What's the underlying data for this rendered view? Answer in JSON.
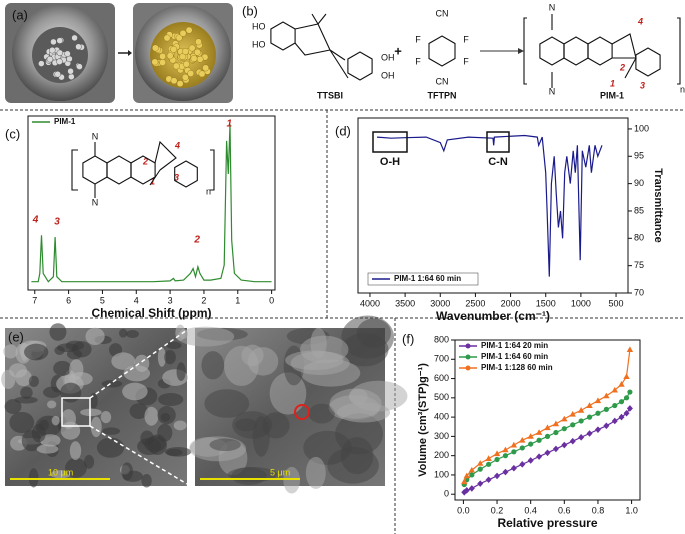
{
  "figure": {
    "panel_labels": [
      "(a)",
      "(b)",
      "(c)",
      "(d)",
      "(e)",
      "(f)"
    ],
    "scheme": {
      "compounds": [
        "TTSBI",
        "TFTPN",
        "PIM-1"
      ],
      "plus": "+",
      "atoms_ttsbi": [
        "HO",
        "HO",
        "OH",
        "OH"
      ],
      "atoms_tftpn": [
        "CN",
        "F",
        "F",
        "F",
        "F",
        "CN"
      ],
      "atoms_pim": [
        "N",
        "N",
        "n"
      ],
      "numbers": [
        "4",
        "2",
        "1",
        "3"
      ]
    },
    "nmr_inset": {
      "atoms": [
        "N",
        "N",
        "n"
      ],
      "numbers": [
        "4",
        "2",
        "3",
        "1"
      ]
    },
    "sem": {
      "scale_bars": [
        "10 μm",
        "5 μm"
      ]
    }
  },
  "chart_data": [
    {
      "type": "line",
      "xlabel": "Chemical Shift (ppm)",
      "xlim": [
        7.2,
        -0.1
      ],
      "xticks": [
        7,
        6,
        5,
        4,
        3,
        2,
        1,
        0
      ],
      "ylim": [
        0,
        1.05
      ],
      "legend": "upper left",
      "peak_labels": [
        "4",
        "3",
        "2",
        "1"
      ],
      "x": [
        7.1,
        6.9,
        6.85,
        6.8,
        6.75,
        6.6,
        6.45,
        6.4,
        6.35,
        6.2,
        5.5,
        4.5,
        3.5,
        3.0,
        2.9,
        2.85,
        2.6,
        2.4,
        2.32,
        2.25,
        2.18,
        2.12,
        2.0,
        1.8,
        1.5,
        1.4,
        1.33,
        1.28,
        1.23,
        1.18,
        1.1,
        0.9,
        0.5,
        0
      ],
      "series": [
        {
          "name": "PIM-1",
          "color": "#2e8b2e",
          "values": [
            0.05,
            0.05,
            0.1,
            0.33,
            0.1,
            0.05,
            0.08,
            0.32,
            0.08,
            0.05,
            0.05,
            0.05,
            0.05,
            0.055,
            0.07,
            0.055,
            0.06,
            0.1,
            0.13,
            0.08,
            0.14,
            0.1,
            0.06,
            0.06,
            0.07,
            0.15,
            0.9,
            0.7,
            1.0,
            0.3,
            0.1,
            0.06,
            0.05,
            0.05
          ]
        }
      ]
    },
    {
      "type": "line",
      "xlabel": "Wavenumber (cm⁻¹)",
      "ylabel": "Transmittance",
      "yaxis_side": "right",
      "xlim": [
        4170,
        330
      ],
      "xticks": [
        4000,
        3500,
        3000,
        2500,
        2000,
        1500,
        1000,
        500
      ],
      "ylim": [
        70,
        102
      ],
      "yticks": [
        70,
        75,
        80,
        85,
        90,
        95,
        100
      ],
      "legend": "lower left",
      "annotations": [
        "O-H",
        "C-N"
      ],
      "x": [
        3900,
        3700,
        3500,
        3200,
        3000,
        2950,
        2900,
        2600,
        2250,
        2240,
        2230,
        1800,
        1620,
        1600,
        1550,
        1500,
        1480,
        1450,
        1420,
        1380,
        1350,
        1320,
        1290,
        1260,
        1230,
        1200,
        1150,
        1110,
        1080,
        1050,
        1010,
        980,
        930,
        880,
        850,
        800,
        760,
        700
      ],
      "series": [
        {
          "name": "PIM-1 1:64 60 min",
          "color": "#1a1a8c",
          "values": [
            98.5,
            98.3,
            98.4,
            98.5,
            97.5,
            96,
            98,
            98.5,
            98.3,
            97,
            98.5,
            98.8,
            98.5,
            97,
            98.5,
            92,
            85,
            73,
            90,
            95,
            88,
            82,
            85,
            80,
            92,
            95,
            90,
            96,
            92,
            97,
            76,
            96,
            93,
            97,
            92,
            97,
            95,
            97
          ]
        }
      ]
    },
    {
      "type": "line",
      "xlabel": "Relative pressure",
      "ylabel": "Volume (cm³(STP)g⁻¹)",
      "xlim": [
        -0.05,
        1.05
      ],
      "xticks": [
        {
          "value": 0,
          "label": "0.0"
        },
        0.2,
        0.4,
        0.6,
        0.8,
        {
          "value": 1,
          "label": "1.0"
        }
      ],
      "ylim": [
        -30,
        800
      ],
      "yticks": [
        0,
        100,
        200,
        300,
        400,
        500,
        600,
        700,
        800
      ],
      "legend": "upper left",
      "x": [
        0.005,
        0.02,
        0.05,
        0.1,
        0.15,
        0.2,
        0.25,
        0.3,
        0.35,
        0.4,
        0.45,
        0.5,
        0.55,
        0.6,
        0.65,
        0.7,
        0.75,
        0.8,
        0.85,
        0.9,
        0.94,
        0.97,
        0.99
      ],
      "series": [
        {
          "name": "PIM-1 1:64  20 min",
          "color": "#6a2fa0",
          "marker": "diamond",
          "values": [
            10,
            20,
            30,
            55,
            75,
            95,
            115,
            135,
            155,
            175,
            195,
            215,
            235,
            255,
            275,
            295,
            315,
            335,
            355,
            380,
            400,
            420,
            445
          ]
        },
        {
          "name": "PIM-1 1:64  60 min",
          "color": "#2e9a4a",
          "marker": "circle",
          "values": [
            50,
            75,
            100,
            130,
            155,
            180,
            200,
            220,
            240,
            260,
            280,
            300,
            320,
            340,
            360,
            380,
            400,
            420,
            440,
            460,
            480,
            500,
            530
          ]
        },
        {
          "name": "PIM-1 1:128 60 min",
          "color": "#f07020",
          "marker": "triangle",
          "values": [
            65,
            95,
            125,
            160,
            185,
            210,
            230,
            255,
            280,
            300,
            320,
            345,
            365,
            390,
            415,
            435,
            460,
            485,
            510,
            540,
            570,
            610,
            750
          ]
        }
      ]
    }
  ]
}
